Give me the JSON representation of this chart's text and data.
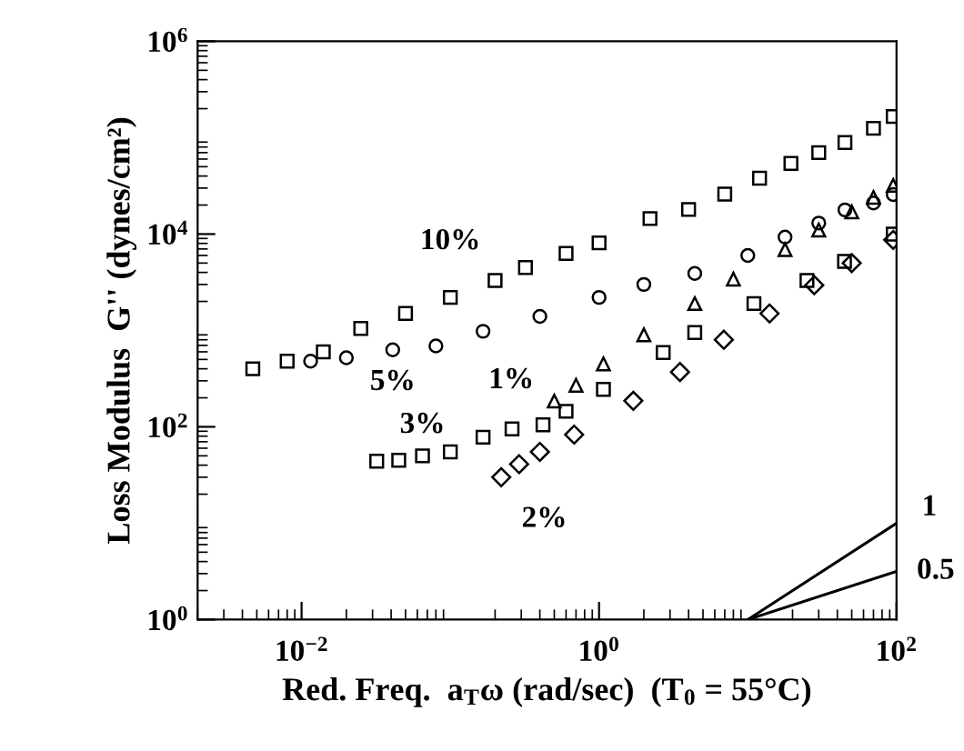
{
  "chart_data": {
    "type": "scatter",
    "xlabel": "Red. Freq.  a$_{T}$ω (rad/sec)  (T$_{0}$ = 55°C)",
    "ylabel": "Loss Modulus  G'' (dynes/cm²)",
    "log": "xy",
    "xlim": [
      0.002,
      100
    ],
    "ylim": [
      1,
      1000000
    ],
    "xticks": [
      {
        "value": 0.01,
        "label": "10$^{−2}$"
      },
      {
        "value": 1,
        "label": "10$^{0}$"
      },
      {
        "value": 100,
        "label": "10$^{2}$"
      }
    ],
    "yticks": [
      {
        "value": 1,
        "label": "10$^{0}$"
      },
      {
        "value": 100,
        "label": "10$^{2}$"
      },
      {
        "value": 10000,
        "label": "10$^{4}$"
      },
      {
        "value": 1000000,
        "label": "10$^{6}$"
      }
    ],
    "grid": false,
    "series": [
      {
        "name": "10%",
        "color": "#000000",
        "marker": "square",
        "x": [
          0.0047,
          0.008,
          0.014,
          0.025,
          0.05,
          0.1,
          0.2,
          0.32,
          0.6,
          1.0,
          2.2,
          4,
          7,
          12,
          19.5,
          30,
          45,
          70,
          95
        ],
        "values": [
          400,
          480,
          600,
          1050,
          1500,
          2200,
          3300,
          4500,
          6300,
          8100,
          14500,
          18000,
          26000,
          38000,
          54000,
          70000,
          89000,
          125000,
          166000
        ]
      },
      {
        "name": "5%",
        "color": "#000000",
        "marker": "circle",
        "x": [
          0.0115,
          0.02,
          0.041,
          0.08,
          0.166,
          0.4,
          1.0,
          2.0,
          4.4,
          10,
          17.8,
          30,
          45,
          70,
          95
        ],
        "values": [
          480,
          520,
          630,
          690,
          980,
          1400,
          2200,
          3000,
          3900,
          6000,
          9300,
          13000,
          17800,
          21000,
          25700
        ]
      },
      {
        "name": "1%",
        "color": "#000000",
        "marker": "triangle",
        "x": [
          0.5,
          0.7,
          1.07,
          2.0,
          4.4,
          8,
          17.8,
          30,
          50,
          70,
          95
        ],
        "values": [
          185,
          270,
          450,
          900,
          1900,
          3400,
          6900,
          11000,
          17000,
          24000,
          32000
        ]
      },
      {
        "name": "3%",
        "color": "#000000",
        "marker": "square",
        "x": [
          0.032,
          0.045,
          0.065,
          0.1,
          0.166,
          0.26,
          0.42,
          0.6,
          1.07,
          2.7,
          4.4,
          11,
          25,
          44.7,
          95
        ],
        "values": [
          44,
          45,
          50,
          55,
          78,
          95,
          105,
          145,
          245,
          590,
          950,
          1900,
          3300,
          5200,
          10000
        ]
      },
      {
        "name": "2%",
        "color": "#000000",
        "marker": "diamond",
        "x": [
          0.22,
          0.29,
          0.4,
          0.68,
          1.7,
          3.5,
          6.9,
          14,
          28,
          50,
          95
        ],
        "values": [
          30,
          41,
          55,
          83,
          186,
          370,
          800,
          1500,
          2950,
          5000,
          8700
        ]
      },
      {
        "name": "1",
        "type": "line",
        "color": "#000000",
        "marker": "none",
        "line_style": "solid",
        "x": [
          10,
          100
        ],
        "values": [
          1,
          10
        ]
      },
      {
        "name": "0.5",
        "type": "line",
        "color": "#000000",
        "marker": "none",
        "line_style": "solid",
        "x": [
          10,
          100
        ],
        "values": [
          1,
          3.16
        ]
      }
    ]
  }
}
